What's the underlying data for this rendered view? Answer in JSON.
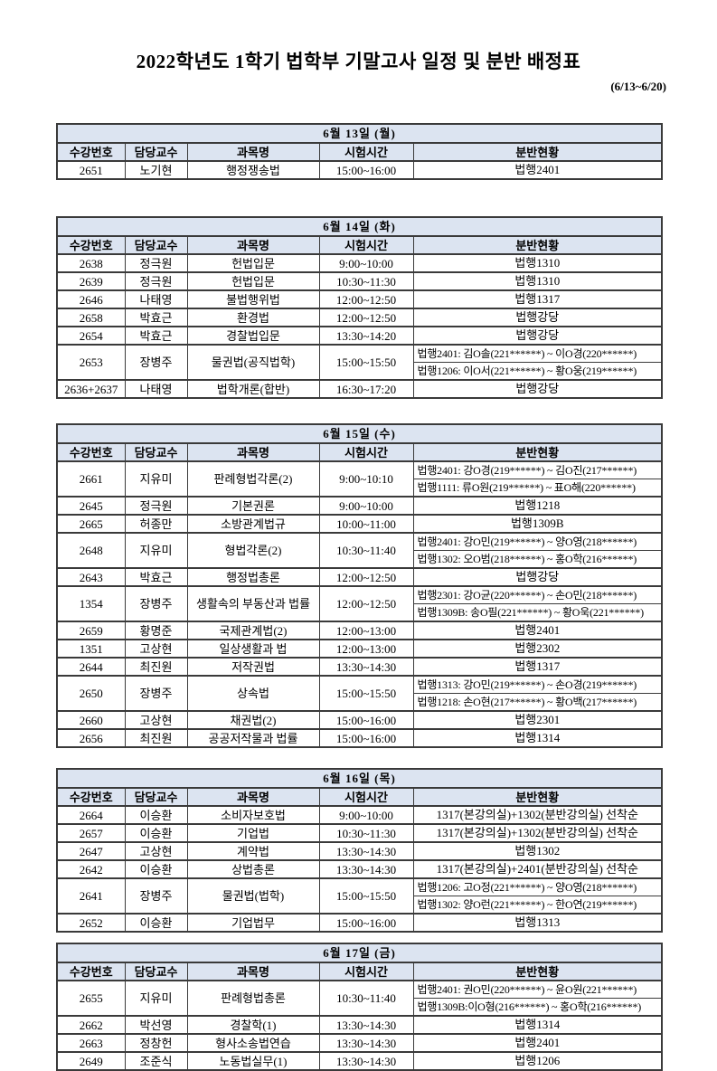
{
  "header": {
    "title": "2022학년도 1학기 법학부 기말고사 일정 및 분반 배정표",
    "range": "(6/13~6/20)"
  },
  "columns": [
    "수강번호",
    "담당교수",
    "과목명",
    "시험시간",
    "분반현황"
  ],
  "accent_color": "#dce4f1",
  "border_color": "#3a3a3a",
  "tables": [
    {
      "date": "6월 13일 (월)",
      "rows": [
        {
          "no": "2651",
          "prof": "노기현",
          "subject": "행정쟁송법",
          "time": "15:00~16:00",
          "rooms": [
            "법행2401"
          ]
        }
      ]
    },
    {
      "date": "6월 14일 (화)",
      "rows": [
        {
          "no": "2638",
          "prof": "정극원",
          "subject": "헌법입문",
          "time": "9:00~10:00",
          "rooms": [
            "법행1310"
          ]
        },
        {
          "no": "2639",
          "prof": "정극원",
          "subject": "헌법입문",
          "time": "10:30~11:30",
          "rooms": [
            "법행1310"
          ]
        },
        {
          "no": "2646",
          "prof": "나태영",
          "subject": "불법행위법",
          "time": "12:00~12:50",
          "rooms": [
            "법행1317"
          ]
        },
        {
          "no": "2658",
          "prof": "박효근",
          "subject": "환경법",
          "time": "12:00~12:50",
          "rooms": [
            "법행강당"
          ]
        },
        {
          "no": "2654",
          "prof": "박효근",
          "subject": "경찰법입문",
          "time": "13:30~14:20",
          "rooms": [
            "법행강당"
          ]
        },
        {
          "no": "2653",
          "prof": "장병주",
          "subject": "물권법(공직법학)",
          "time": "15:00~15:50",
          "rooms": [
            "법행2401: 김O솔(221******) ~ 이O경(220******)",
            "법행1206: 이O서(221******) ~ 황O웅(219******)"
          ]
        },
        {
          "no": "2636+2637",
          "prof": "나태영",
          "subject": "법학개론(합반)",
          "time": "16:30~17:20",
          "rooms": [
            "법행강당"
          ]
        }
      ]
    },
    {
      "date": "6월 15일 (수)",
      "rows": [
        {
          "no": "2661",
          "prof": "지유미",
          "subject": "판례형법각론(2)",
          "time": "9:00~10:10",
          "rooms": [
            "법행2401: 강O경(219******) ~ 김O진(217******)",
            "법행1111: 류O원(219******) ~ 표O해(220******)"
          ]
        },
        {
          "no": "2645",
          "prof": "정극원",
          "subject": "기본권론",
          "time": "9:00~10:00",
          "rooms": [
            "법행1218"
          ]
        },
        {
          "no": "2665",
          "prof": "허종만",
          "subject": "소방관계법규",
          "time": "10:00~11:00",
          "rooms": [
            "법행1309B"
          ]
        },
        {
          "no": "2648",
          "prof": "지유미",
          "subject": "형법각론(2)",
          "time": "10:30~11:40",
          "rooms": [
            "법행2401: 강O민(219******) ~ 양O영(218******)",
            "법행1302: 오O범(218******) ~ 홍O학(216******)"
          ]
        },
        {
          "no": "2643",
          "prof": "박효근",
          "subject": "행정법총론",
          "time": "12:00~12:50",
          "rooms": [
            "법행강당"
          ]
        },
        {
          "no": "1354",
          "prof": "장병주",
          "subject": "생활속의 부동산과 법률",
          "time": "12:00~12:50",
          "rooms": [
            "법행2301: 강O균(220******) ~ 손O민(218******)",
            "법행1309B: 송O필(221******) ~ 황O욱(221******)"
          ]
        },
        {
          "no": "2659",
          "prof": "황명준",
          "subject": "국제관계법(2)",
          "time": "12:00~13:00",
          "rooms": [
            "법행2401"
          ]
        },
        {
          "no": "1351",
          "prof": "고상현",
          "subject": "일상생활과 법",
          "time": "12:00~13:00",
          "rooms": [
            "법행2302"
          ]
        },
        {
          "no": "2644",
          "prof": "최진원",
          "subject": "저작권법",
          "time": "13:30~14:30",
          "rooms": [
            "법행1317"
          ]
        },
        {
          "no": "2650",
          "prof": "장병주",
          "subject": "상속법",
          "time": "15:00~15:50",
          "rooms": [
            "법행1313: 강O민(219******) ~ 손O경(219******)",
            "법행1218: 손O현(217******) ~ 황O백(217******)"
          ]
        },
        {
          "no": "2660",
          "prof": "고상현",
          "subject": "채권법(2)",
          "time": "15:00~16:00",
          "rooms": [
            "법행2301"
          ]
        },
        {
          "no": "2656",
          "prof": "최진원",
          "subject": "공공저작물과 법률",
          "time": "15:00~16:00",
          "rooms": [
            "법행1314"
          ]
        }
      ]
    },
    {
      "date": "6월 16일 (목)",
      "rows": [
        {
          "no": "2664",
          "prof": "이승환",
          "subject": "소비자보호법",
          "time": "9:00~10:00",
          "rooms": [
            "1317(본강의실)+1302(분반강의실) 선착순"
          ]
        },
        {
          "no": "2657",
          "prof": "이승환",
          "subject": "기업법",
          "time": "10:30~11:30",
          "rooms": [
            "1317(본강의실)+1302(분반강의실) 선착순"
          ]
        },
        {
          "no": "2647",
          "prof": "고상현",
          "subject": "계약법",
          "time": "13:30~14:30",
          "rooms": [
            "법행1302"
          ]
        },
        {
          "no": "2642",
          "prof": "이승환",
          "subject": "상법총론",
          "time": "13:30~14:30",
          "rooms": [
            "1317(본강의실)+2401(분반강의실) 선착순"
          ]
        },
        {
          "no": "2641",
          "prof": "장병주",
          "subject": "물권법(법학)",
          "time": "15:00~15:50",
          "rooms": [
            "법행1206: 고O정(221******) ~ 양O영(218******)",
            "법행1302: 양O런(221******) ~ 한O연(219******)"
          ]
        },
        {
          "no": "2652",
          "prof": "이승환",
          "subject": "기업법무",
          "time": "15:00~16:00",
          "rooms": [
            "법행1313"
          ]
        }
      ]
    },
    {
      "date": "6월 17일 (금)",
      "rows": [
        {
          "no": "2655",
          "prof": "지유미",
          "subject": "판례형법총론",
          "time": "10:30~11:40",
          "rooms": [
            "법행2401: 권O민(220******) ~ 윤O원(221******)",
            "법행1309B:이O형(216******) ~ 홍O학(216******)"
          ]
        },
        {
          "no": "2662",
          "prof": "박선영",
          "subject": "경찰학(1)",
          "time": "13:30~14:30",
          "rooms": [
            "법행1314"
          ]
        },
        {
          "no": "2663",
          "prof": "정창헌",
          "subject": "형사소송법연습",
          "time": "13:30~14:30",
          "rooms": [
            "법행2401"
          ]
        },
        {
          "no": "2649",
          "prof": "조준식",
          "subject": "노동법실무(1)",
          "time": "13:30~14:30",
          "rooms": [
            "법행1206"
          ]
        }
      ]
    }
  ]
}
